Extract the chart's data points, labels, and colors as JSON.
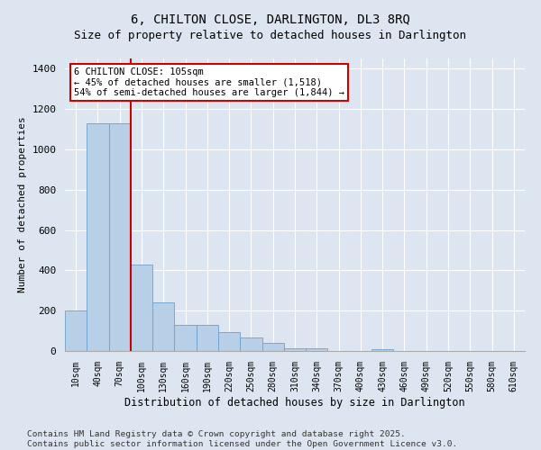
{
  "title1": "6, CHILTON CLOSE, DARLINGTON, DL3 8RQ",
  "title2": "Size of property relative to detached houses in Darlington",
  "xlabel": "Distribution of detached houses by size in Darlington",
  "ylabel": "Number of detached properties",
  "categories": [
    "10sqm",
    "40sqm",
    "70sqm",
    "100sqm",
    "130sqm",
    "160sqm",
    "190sqm",
    "220sqm",
    "250sqm",
    "280sqm",
    "310sqm",
    "340sqm",
    "370sqm",
    "400sqm",
    "430sqm",
    "460sqm",
    "490sqm",
    "520sqm",
    "550sqm",
    "580sqm",
    "610sqm"
  ],
  "values": [
    200,
    1130,
    1130,
    430,
    240,
    130,
    130,
    95,
    65,
    40,
    15,
    15,
    0,
    0,
    10,
    0,
    0,
    0,
    0,
    0,
    0
  ],
  "bar_color": "#b8cfe8",
  "bar_edge_color": "#6ca0cc",
  "vline_x_index": 3,
  "vline_color": "#cc0000",
  "annotation_text": "6 CHILTON CLOSE: 105sqm\n← 45% of detached houses are smaller (1,518)\n54% of semi-detached houses are larger (1,844) →",
  "annotation_box_facecolor": "#ffffff",
  "annotation_box_edgecolor": "#cc0000",
  "ylim": [
    0,
    1450
  ],
  "yticks": [
    0,
    200,
    400,
    600,
    800,
    1000,
    1200,
    1400
  ],
  "bg_color": "#dde6f0",
  "plot_bg": "#dde6f0",
  "footer1": "Contains HM Land Registry data © Crown copyright and database right 2025.",
  "footer2": "Contains public sector information licensed under the Open Government Licence v3.0.",
  "title1_fontsize": 10,
  "title2_fontsize": 9,
  "annotation_fontsize": 7.5,
  "footer_fontsize": 6.8,
  "ylabel_fontsize": 8,
  "xlabel_fontsize": 8.5,
  "xtick_fontsize": 7,
  "ytick_fontsize": 8
}
